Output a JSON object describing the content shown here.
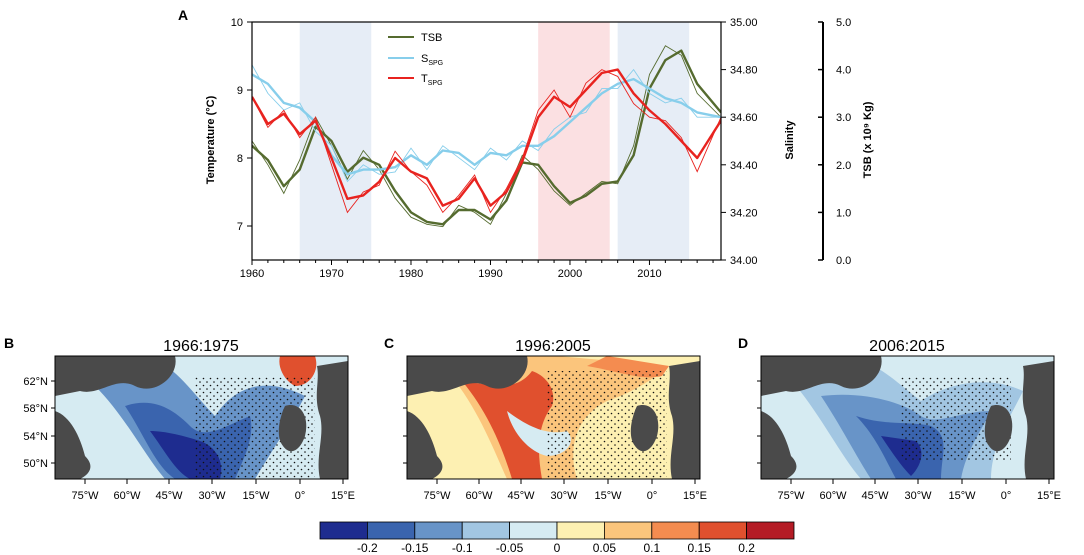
{
  "chart_data": [
    {
      "type": "line",
      "panel_label": "A",
      "xlabel": "",
      "x_ticks": [
        1960,
        1970,
        1980,
        1990,
        2000,
        2010
      ],
      "xlim": [
        1960,
        2019
      ],
      "axes": {
        "left": {
          "label": "Temperature (°C)",
          "ylim": [
            6.5,
            10
          ],
          "ticks": [
            "7",
            "8",
            "9",
            "10"
          ]
        },
        "right1": {
          "label": "Salinity",
          "ylim": [
            34.0,
            35.0
          ],
          "ticks": [
            "34.00",
            "34.20",
            "34.40",
            "34.60",
            "34.80",
            "35.00"
          ]
        },
        "right2": {
          "label": "TSB (x 10⁹ Kg)",
          "ylim": [
            0.0,
            5.0
          ],
          "ticks": [
            "0.0",
            "1.0",
            "2.0",
            "3.0",
            "4.0",
            "5.0"
          ]
        }
      },
      "shaded_periods": [
        {
          "start": 1966,
          "end": 1975,
          "color": "#e6edf6"
        },
        {
          "start": 1996,
          "end": 2005,
          "color": "#fbe0e2"
        },
        {
          "start": 2006,
          "end": 2015,
          "color": "#e6edf6"
        }
      ],
      "legend": [
        {
          "label": "TSB",
          "color": "#556b2f"
        },
        {
          "label": "S",
          "sub": "SPG",
          "color": "#87ceeb"
        },
        {
          "label": "T",
          "sub": "SPG",
          "color": "#e8231f"
        }
      ],
      "series": [
        {
          "name": "TSB",
          "color": "#556b2f",
          "axis": "right2",
          "years": [
            1960,
            1962,
            1964,
            1966,
            1968,
            1970,
            1972,
            1974,
            1976,
            1978,
            1980,
            1982,
            1984,
            1986,
            1988,
            1990,
            1992,
            1994,
            1996,
            1998,
            2000,
            2002,
            2004,
            2006,
            2008,
            2010,
            2012,
            2014,
            2016,
            2019
          ],
          "smooth": [
            2.4,
            2.1,
            1.55,
            1.9,
            2.8,
            2.5,
            1.85,
            2.15,
            2.0,
            1.45,
            1.0,
            0.8,
            0.75,
            1.05,
            1.05,
            0.85,
            1.25,
            2.05,
            2.0,
            1.55,
            1.2,
            1.35,
            1.6,
            1.65,
            2.2,
            3.6,
            4.2,
            4.4,
            3.7,
            3.1
          ],
          "raw": [
            2.5,
            2.0,
            1.4,
            2.1,
            3.0,
            2.4,
            1.7,
            2.3,
            1.9,
            1.3,
            0.9,
            0.75,
            0.7,
            1.15,
            1.0,
            0.75,
            1.4,
            2.2,
            1.9,
            1.45,
            1.15,
            1.4,
            1.65,
            1.6,
            2.4,
            3.9,
            4.5,
            4.3,
            3.5,
            3.0
          ]
        },
        {
          "name": "S_SPG",
          "color": "#87ceeb",
          "axis": "right1",
          "years": [
            1960,
            1962,
            1964,
            1966,
            1968,
            1970,
            1972,
            1974,
            1976,
            1978,
            1980,
            1982,
            1984,
            1986,
            1988,
            1990,
            1992,
            1994,
            1996,
            1998,
            2000,
            2002,
            2004,
            2006,
            2008,
            2010,
            2012,
            2014,
            2016,
            2019
          ],
          "smooth": [
            34.78,
            34.74,
            34.66,
            34.64,
            34.58,
            34.44,
            34.36,
            34.38,
            34.38,
            34.39,
            34.44,
            34.4,
            34.46,
            34.45,
            34.4,
            34.45,
            34.44,
            34.48,
            34.48,
            34.52,
            34.58,
            34.64,
            34.7,
            34.74,
            34.76,
            34.72,
            34.68,
            34.66,
            34.62,
            34.6
          ],
          "raw": [
            34.82,
            34.7,
            34.63,
            34.66,
            34.54,
            34.48,
            34.33,
            34.4,
            34.36,
            34.37,
            34.47,
            34.38,
            34.48,
            34.43,
            34.38,
            34.47,
            34.42,
            34.5,
            34.46,
            34.55,
            34.6,
            34.62,
            34.72,
            34.72,
            34.8,
            34.7,
            34.66,
            34.68,
            34.6,
            34.6
          ]
        },
        {
          "name": "T_SPG",
          "color": "#e8231f",
          "axis": "left",
          "years": [
            1960,
            1962,
            1964,
            1966,
            1968,
            1970,
            1972,
            1974,
            1976,
            1978,
            1980,
            1982,
            1984,
            1986,
            1988,
            1990,
            1992,
            1994,
            1996,
            1998,
            2000,
            2002,
            2004,
            2006,
            2008,
            2010,
            2012,
            2014,
            2016,
            2019
          ],
          "smooth": [
            8.9,
            8.5,
            8.65,
            8.35,
            8.55,
            8.0,
            7.4,
            7.45,
            7.65,
            8.0,
            7.8,
            7.7,
            7.3,
            7.4,
            7.7,
            7.3,
            7.5,
            7.95,
            8.6,
            8.9,
            8.75,
            9.0,
            9.25,
            9.3,
            8.95,
            8.7,
            8.5,
            8.25,
            8.0,
            8.55
          ],
          "raw": [
            8.9,
            8.45,
            8.7,
            8.3,
            8.6,
            7.9,
            7.2,
            7.5,
            7.6,
            8.1,
            7.8,
            7.6,
            7.2,
            7.45,
            7.75,
            7.2,
            7.55,
            8.0,
            8.7,
            9.0,
            8.6,
            9.1,
            9.3,
            9.2,
            8.8,
            8.6,
            8.55,
            8.3,
            7.8,
            8.6
          ]
        }
      ]
    },
    {
      "type": "heatmap",
      "panels": [
        {
          "panel_label": "B",
          "title": "1966:1975",
          "anomaly": "negative"
        },
        {
          "panel_label": "C",
          "title": "1996:2005",
          "anomaly": "positive"
        },
        {
          "panel_label": "D",
          "title": "2006:2015",
          "anomaly": "negative"
        }
      ],
      "lat_ticks": [
        "62°N",
        "58°N",
        "54°N",
        "50°N"
      ],
      "lon_ticks": [
        "75°W",
        "60°W",
        "45°W",
        "30°W",
        "15°W",
        "0°",
        "15°E"
      ],
      "colorbar": {
        "colors": [
          "#1e2c8f",
          "#3a64ae",
          "#6894c8",
          "#a2c6e2",
          "#d6ebf2",
          "#fdf0b2",
          "#fbc57c",
          "#f48c50",
          "#e0502e",
          "#b41b25"
        ],
        "labels": [
          "-0.2",
          "-0.15",
          "-0.1",
          "-0.05",
          "0",
          "0.05",
          "0.1",
          "0.15",
          "0.2"
        ]
      }
    }
  ]
}
